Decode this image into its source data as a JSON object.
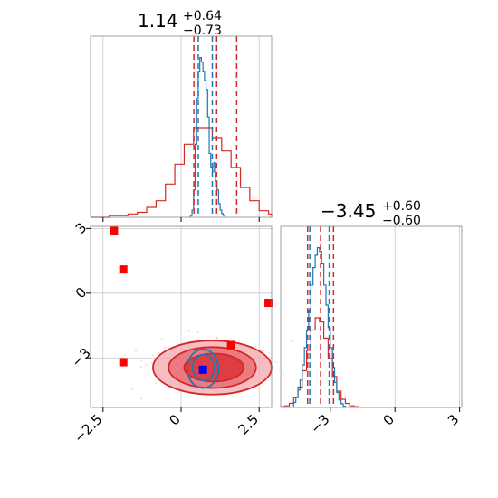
{
  "colors": {
    "red": "#d62728",
    "blue": "#1f77b4",
    "marker_red": "#ff0000",
    "marker_blue": "#0000ff",
    "grid": "#c8c8c8",
    "axis": "#888888"
  },
  "chart_data": [
    {
      "type": "histogram",
      "panel": "top-left marginal (parameter 1)",
      "title": {
        "value": "1.14",
        "upper": "+0.64",
        "lower": "−0.73"
      },
      "xlim": [
        -2.9,
        2.9
      ],
      "x_ticks": [
        -2.5,
        0.0,
        2.5
      ],
      "series": [
        {
          "color": "#d62728",
          "edges": [
            -2.9,
            -2.6,
            -2.3,
            -2.0,
            -1.7,
            -1.4,
            -1.1,
            -0.8,
            -0.5,
            -0.2,
            0.1,
            0.4,
            0.7,
            1.0,
            1.3,
            1.6,
            1.9,
            2.2,
            2.5,
            2.8,
            2.9
          ],
          "counts": [
            0,
            0,
            1,
            1,
            2,
            3,
            6,
            10,
            20,
            32,
            44,
            54,
            54,
            48,
            40,
            30,
            18,
            10,
            4,
            2
          ]
        },
        {
          "color": "#1f77b4",
          "edges": [
            0.3,
            0.35,
            0.4,
            0.45,
            0.5,
            0.55,
            0.6,
            0.65,
            0.7,
            0.75,
            0.8,
            0.85,
            0.9,
            0.95,
            1.0,
            1.05,
            1.1,
            1.15,
            1.2,
            1.25,
            1.3,
            1.35,
            1.4
          ],
          "counts": [
            2,
            8,
            30,
            80,
            130,
            160,
            175,
            170,
            160,
            150,
            140,
            110,
            70,
            55,
            50,
            60,
            40,
            30,
            15,
            8,
            4,
            2
          ]
        }
      ],
      "vlines": [
        {
          "x": 0.41,
          "color": "#d62728"
        },
        {
          "x": 1.14,
          "color": "#d62728"
        },
        {
          "x": 1.78,
          "color": "#d62728"
        },
        {
          "x": 0.55,
          "color": "#1f77b4"
        },
        {
          "x": 1.0,
          "color": "#1f77b4"
        }
      ]
    },
    {
      "type": "contour",
      "panel": "bottom-left joint (parameter 1 vs parameter 2)",
      "xlim": [
        -2.9,
        2.9
      ],
      "ylim": [
        -5.3,
        3.1
      ],
      "x_ticks": [
        -2.5,
        0.0,
        2.5
      ],
      "y_ticks": [
        -3,
        0,
        3
      ],
      "contours": [
        {
          "color": "#d62728",
          "center": [
            1.0,
            -3.45
          ],
          "rx": 1.9,
          "ry": 1.25,
          "opacity": 0.75
        },
        {
          "color": "#d62728",
          "center": [
            1.0,
            -3.45
          ],
          "rx": 1.4,
          "ry": 0.95,
          "opacity": 0.85
        },
        {
          "color": "#d62728",
          "center": [
            1.05,
            -3.45
          ],
          "rx": 0.95,
          "ry": 0.65,
          "opacity": 0.95
        },
        {
          "color": "#1f77b4",
          "center": [
            0.7,
            -3.5
          ],
          "rx": 0.5,
          "ry": 0.9,
          "opacity": 0.0
        },
        {
          "color": "#1f77b4",
          "center": [
            0.72,
            -3.45
          ],
          "rx": 0.35,
          "ry": 0.6,
          "opacity": 0.0
        }
      ],
      "markers": [
        {
          "x": -2.15,
          "y": 2.9,
          "color": "#ff0000"
        },
        {
          "x": -1.85,
          "y": 1.1,
          "color": "#ff0000"
        },
        {
          "x": -1.85,
          "y": -3.2,
          "color": "#ff0000"
        },
        {
          "x": 1.6,
          "y": -2.4,
          "color": "#ff0000"
        },
        {
          "x": 2.8,
          "y": -0.45,
          "color": "#ff0000"
        },
        {
          "x": 0.7,
          "y": -3.55,
          "color": "#0000ff"
        }
      ]
    },
    {
      "type": "histogram",
      "panel": "bottom-right marginal (parameter 2)",
      "title": {
        "value": "−3.45",
        "upper": "+0.60",
        "lower": "−0.60"
      },
      "xlim": [
        -5.3,
        3.1
      ],
      "x_ticks": [
        -3,
        0,
        3
      ],
      "series": [
        {
          "color": "#d62728",
          "edges": [
            -5.3,
            -5.1,
            -4.9,
            -4.7,
            -4.5,
            -4.3,
            -4.1,
            -3.9,
            -3.7,
            -3.5,
            -3.3,
            -3.1,
            -2.9,
            -2.7,
            -2.5,
            -2.3,
            -2.1,
            -1.9,
            -1.7
          ],
          "counts": [
            1,
            2,
            5,
            12,
            25,
            45,
            70,
            95,
            110,
            105,
            85,
            60,
            38,
            20,
            10,
            5,
            2,
            1
          ]
        },
        {
          "color": "#1f77b4",
          "edges": [
            -4.7,
            -4.6,
            -4.5,
            -4.4,
            -4.3,
            -4.2,
            -4.1,
            -4.0,
            -3.9,
            -3.8,
            -3.7,
            -3.6,
            -3.5,
            -3.4,
            -3.3,
            -3.2,
            -3.1,
            -3.0,
            -2.9,
            -2.8,
            -2.7,
            -2.6,
            -2.5,
            -2.4,
            -2.3
          ],
          "counts": [
            4,
            8,
            14,
            22,
            34,
            48,
            62,
            78,
            98,
            112,
            122,
            128,
            125,
            115,
            98,
            82,
            64,
            48,
            32,
            20,
            12,
            6,
            3,
            1
          ]
        }
      ],
      "vlines": [
        {
          "x": -4.05,
          "color": "#d62728"
        },
        {
          "x": -3.45,
          "color": "#d62728"
        },
        {
          "x": -2.85,
          "color": "#d62728"
        },
        {
          "x": -3.95,
          "color": "#1f77b4"
        },
        {
          "x": -3.05,
          "color": "#1f77b4"
        }
      ]
    }
  ]
}
